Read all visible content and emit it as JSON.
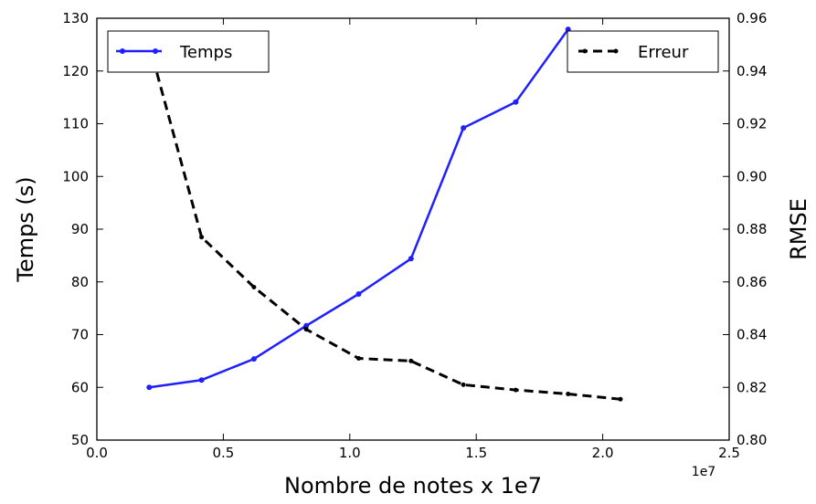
{
  "chart_data": {
    "type": "line",
    "xlabel": "Nombre de notes x 1e7",
    "x_offset_label": "1e7",
    "ylabel_left": "Temps (s)",
    "ylabel_right": "RMSE",
    "xlim": [
      0.0,
      2.5
    ],
    "ylim_left": [
      50,
      130
    ],
    "ylim_right": [
      0.8,
      0.96
    ],
    "x_ticks": [
      "0.0",
      "0.5",
      "1.0",
      "1.5",
      "2.0",
      "2.5"
    ],
    "y_ticks_left": [
      "50",
      "60",
      "70",
      "80",
      "90",
      "100",
      "110",
      "120",
      "130"
    ],
    "y_ticks_right": [
      "0.80",
      "0.82",
      "0.84",
      "0.86",
      "0.88",
      "0.90",
      "0.92",
      "0.94",
      "0.96"
    ],
    "grid": false,
    "series": [
      {
        "name": "Temps",
        "axis": "left",
        "color": "#1f1fff",
        "style": "solid",
        "marker": "dot",
        "legend_position": "top-left",
        "x": [
          0.207,
          0.414,
          0.621,
          0.828,
          1.035,
          1.242,
          1.449,
          1.656,
          1.863
        ],
        "y": [
          60.0,
          61.4,
          65.4,
          71.7,
          77.7,
          84.4,
          109.2,
          114.1,
          127.9
        ]
      },
      {
        "name": "Erreur",
        "axis": "right",
        "color": "#000000",
        "style": "dashed",
        "marker": "dot",
        "legend_position": "top-right",
        "x": [
          0.207,
          0.414,
          0.621,
          0.828,
          1.035,
          1.242,
          1.449,
          1.656,
          1.863,
          2.07
        ],
        "y": [
          0.95,
          0.877,
          0.858,
          0.842,
          0.831,
          0.83,
          0.821,
          0.819,
          0.8175,
          0.8155
        ]
      }
    ]
  }
}
